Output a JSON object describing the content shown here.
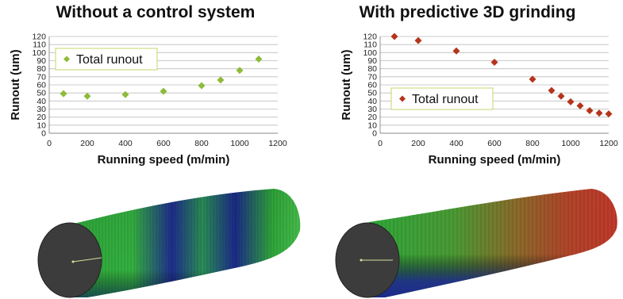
{
  "chart_data": [
    {
      "type": "scatter",
      "title": "Without a control system",
      "xlabel": "Running speed (m/min)",
      "ylabel": "Runout (um)",
      "xlim": [
        0,
        1200
      ],
      "ylim": [
        0,
        120
      ],
      "xticks": [
        0,
        200,
        400,
        600,
        800,
        1000,
        1200
      ],
      "yticks": [
        0,
        10,
        20,
        30,
        40,
        50,
        60,
        70,
        80,
        90,
        100,
        110,
        120
      ],
      "grid": true,
      "legend_position": "upper-left",
      "series": [
        {
          "name": "Total runout",
          "color": "#8dbb3a",
          "marker": "diamond",
          "x": [
            75,
            200,
            400,
            600,
            800,
            900,
            1000,
            1100
          ],
          "y": [
            49,
            46,
            48,
            52,
            59,
            66,
            78,
            92
          ]
        }
      ]
    },
    {
      "type": "scatter",
      "title": "With predictive 3D grinding",
      "xlabel": "Running speed (m/min)",
      "ylabel": "Runout (um)",
      "xlim": [
        0,
        1200
      ],
      "ylim": [
        0,
        120
      ],
      "xticks": [
        0,
        200,
        400,
        600,
        800,
        1000,
        1200
      ],
      "yticks": [
        0,
        10,
        20,
        30,
        40,
        50,
        60,
        70,
        80,
        90,
        100,
        110,
        120
      ],
      "grid": true,
      "legend_position": "lower-left",
      "series": [
        {
          "name": "Total runout",
          "color": "#b5341c",
          "marker": "diamond",
          "x": [
            75,
            200,
            400,
            600,
            800,
            900,
            950,
            1000,
            1050,
            1100,
            1150,
            1200
          ],
          "y": [
            120,
            115,
            102,
            88,
            67,
            53,
            46,
            39,
            34,
            28,
            25,
            24
          ]
        }
      ]
    }
  ],
  "illustrations": [
    {
      "subject": "roll-surface-without-control",
      "colors": [
        "#2aa52a",
        "#1d2a8c",
        "#3a3a3a"
      ]
    },
    {
      "subject": "roll-surface-with-grinding",
      "colors": [
        "#c0392b",
        "#2f9e3a",
        "#1d2a8c",
        "#3a3a3a"
      ]
    }
  ]
}
